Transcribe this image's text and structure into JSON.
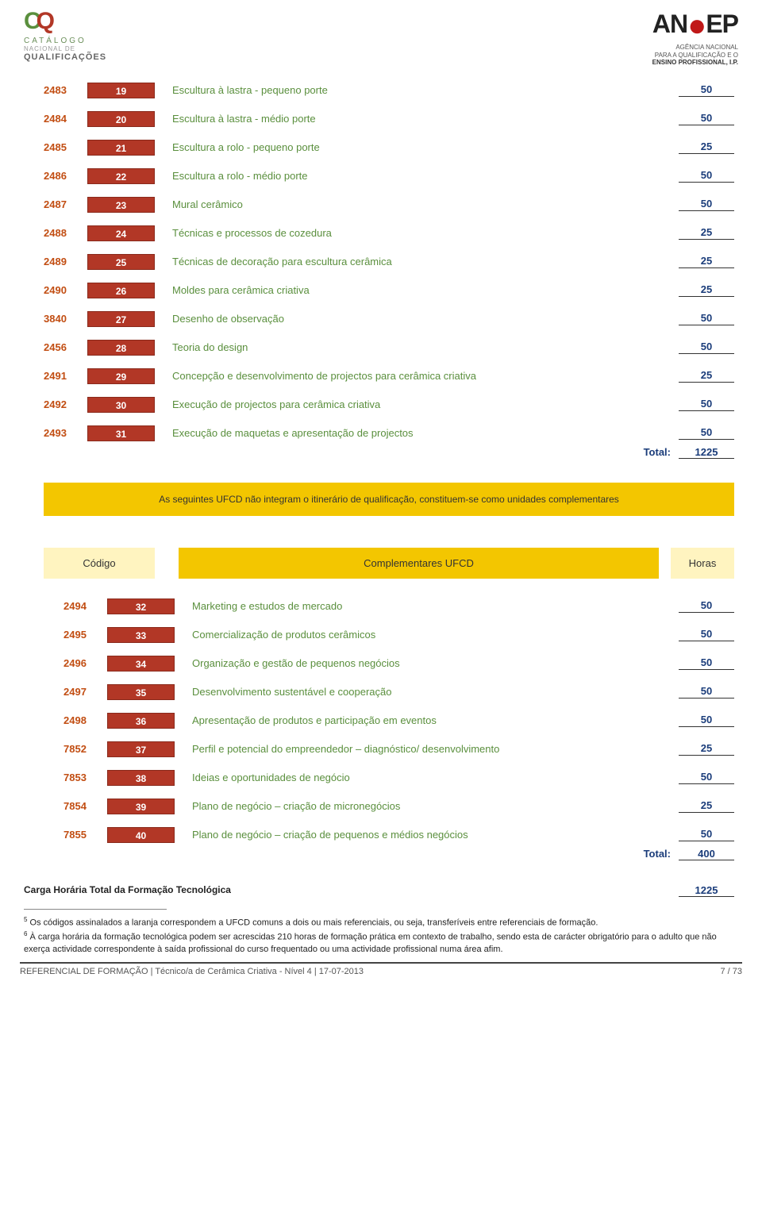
{
  "logo_left": {
    "t1": "CATÁLOGO",
    "t2": "NACIONAL DE",
    "t3": "QUALIFICAÇÕES"
  },
  "logo_right": {
    "brand_a": "AN",
    "brand_b": "EP",
    "sub1": "AGÊNCIA NACIONAL",
    "sub2": "PARA A QUALIFICAÇÃO E O",
    "sub3": "ENSINO PROFISSIONAL, I.P."
  },
  "table1": {
    "rows": [
      {
        "code": "2483",
        "n": "19",
        "desc": "Escultura à lastra - pequeno porte",
        "h": "50"
      },
      {
        "code": "2484",
        "n": "20",
        "desc": "Escultura à lastra - médio porte",
        "h": "50"
      },
      {
        "code": "2485",
        "n": "21",
        "desc": "Escultura a rolo - pequeno porte",
        "h": "25"
      },
      {
        "code": "2486",
        "n": "22",
        "desc": "Escultura a rolo - médio porte",
        "h": "50"
      },
      {
        "code": "2487",
        "n": "23",
        "desc": "Mural cerâmico",
        "h": "50"
      },
      {
        "code": "2488",
        "n": "24",
        "desc": "Técnicas e processos de cozedura",
        "h": "25"
      },
      {
        "code": "2489",
        "n": "25",
        "desc": "Técnicas de decoração para escultura cerâmica",
        "h": "25"
      },
      {
        "code": "2490",
        "n": "26",
        "desc": "Moldes para cerâmica criativa",
        "h": "25"
      },
      {
        "code": "3840",
        "n": "27",
        "desc": "Desenho de observação",
        "h": "50"
      },
      {
        "code": "2456",
        "n": "28",
        "desc": "Teoria do design",
        "h": "50"
      },
      {
        "code": "2491",
        "n": "29",
        "desc": "Concepção e desenvolvimento de projectos para cerâmica criativa",
        "h": "25"
      },
      {
        "code": "2492",
        "n": "30",
        "desc": "Execução de projectos para cerâmica criativa",
        "h": "50"
      },
      {
        "code": "2493",
        "n": "31",
        "desc": "Execução de maquetas e apresentação de projectos",
        "h": "50"
      }
    ],
    "total_label": "Total:",
    "total_val": "1225"
  },
  "banner": "As seguintes UFCD não integram o itinerário de qualificação, constituem-se como unidades complementares",
  "table2": {
    "head": {
      "code": "Código",
      "desc": "Complementares UFCD",
      "hours": "Horas"
    },
    "rows": [
      {
        "code": "2494",
        "n": "32",
        "desc": "Marketing e estudos de mercado",
        "h": "50"
      },
      {
        "code": "2495",
        "n": "33",
        "desc": "Comercialização de produtos cerâmicos",
        "h": "50"
      },
      {
        "code": "2496",
        "n": "34",
        "desc": "Organização e gestão de pequenos negócios",
        "h": "50"
      },
      {
        "code": "2497",
        "n": "35",
        "desc": "Desenvolvimento sustentável e cooperação",
        "h": "50"
      },
      {
        "code": "2498",
        "n": "36",
        "desc": "Apresentação de produtos e participação em eventos",
        "h": "50"
      },
      {
        "code": "7852",
        "n": "37",
        "desc": "Perfil e potencial do empreendedor – diagnóstico/ desenvolvimento",
        "h": "25"
      },
      {
        "code": "7853",
        "n": "38",
        "desc": "Ideias e oportunidades de negócio",
        "h": "50"
      },
      {
        "code": "7854",
        "n": "39",
        "desc": "Plano de negócio – criação de micronegócios",
        "h": "25"
      },
      {
        "code": "7855",
        "n": "40",
        "desc": "Plano de negócio – criação de pequenos e médios negócios",
        "h": "50"
      }
    ],
    "total_label": "Total:",
    "total_val": "400"
  },
  "carga": {
    "label": "Carga Horária Total da Formação Tecnológica",
    "val": "1225"
  },
  "footnotes": {
    "f5": "Os códigos assinalados a laranja correspondem a UFCD comuns a dois ou mais referenciais, ou seja, transferíveis entre referenciais de formação.",
    "f6": "À carga horária da formação tecnológica podem ser acrescidas 210 horas de formação prática em contexto de trabalho, sendo esta de carácter obrigatório para o adulto que não exerça actividade correspondente à saída profissional do curso frequentado ou uma actividade profissional numa área afim."
  },
  "footer": {
    "left": "REFERENCIAL DE FORMAÇÃO | Técnico/a de Cerâmica Criativa - Nível 4 | 17-07-2013",
    "right": "7 / 73"
  },
  "colors": {
    "badge_bg": "#b23726",
    "code_color": "#c24e13",
    "desc_color": "#5a8f3d",
    "hours_color": "#1a3c7a",
    "banner_bg": "#f3c600",
    "head_light": "#fff4c0"
  }
}
